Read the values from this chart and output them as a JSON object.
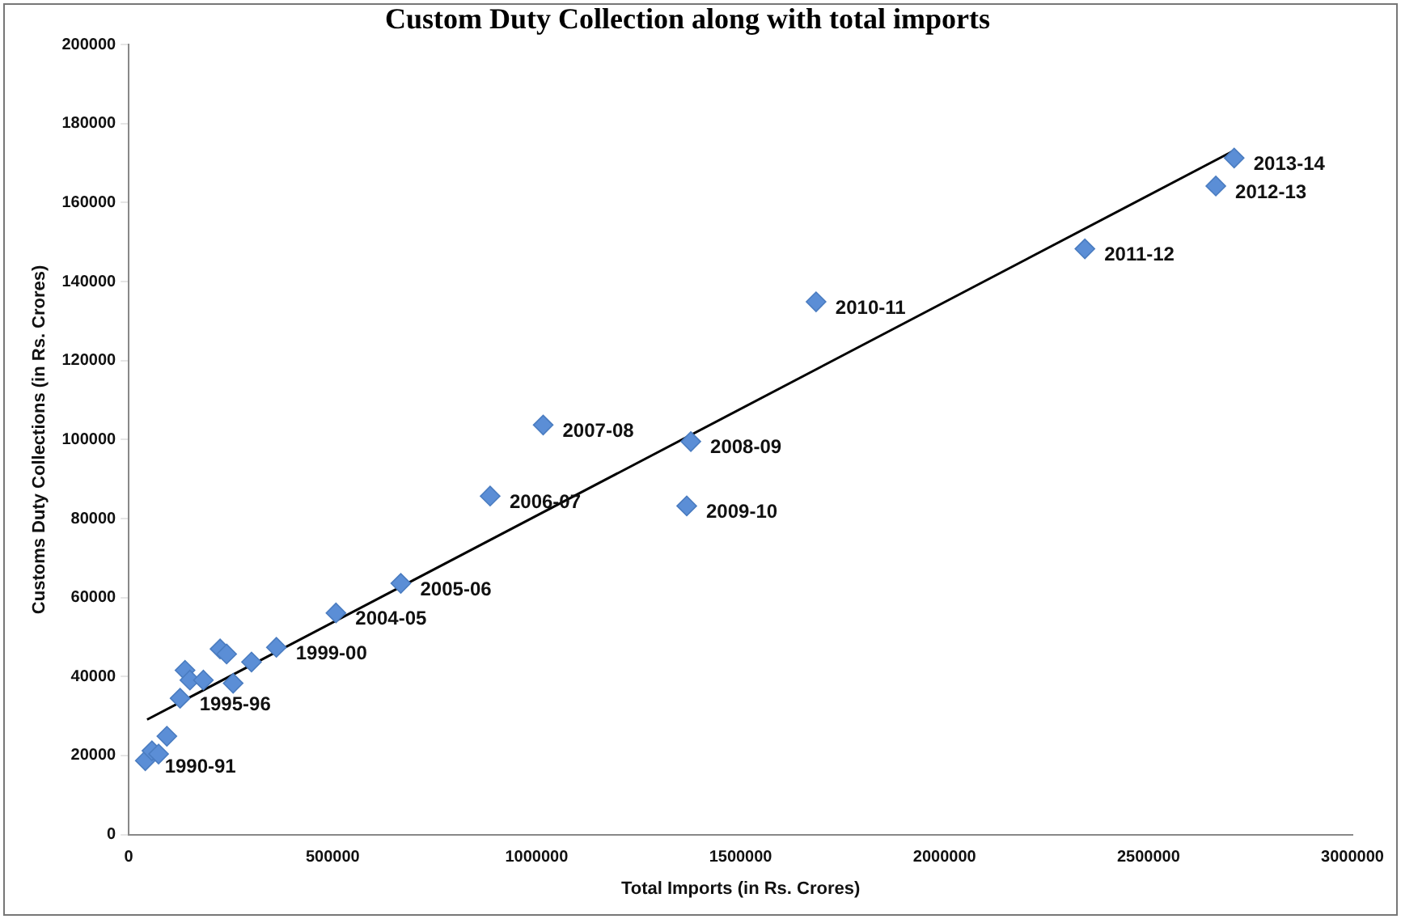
{
  "chart_data": {
    "type": "scatter",
    "title": "Custom Duty Collection along with total imports",
    "xlabel": "Total Imports (in Rs. Crores)",
    "ylabel": "Customs Duty Collections (in Rs. Crores)",
    "xlim": [
      0,
      3000000
    ],
    "xticks": [
      0,
      500000,
      1000000,
      1500000,
      2000000,
      2500000,
      3000000
    ],
    "ylim": [
      0,
      200000
    ],
    "yticks": [
      0,
      20000,
      40000,
      60000,
      80000,
      100000,
      120000,
      140000,
      160000,
      180000,
      200000
    ],
    "grid": false,
    "legend": false,
    "marker": "diamond",
    "series": [
      {
        "type": "scatter",
        "color": "#5b8ed6",
        "x": [
          40650,
          56900,
          73200,
          93500,
          126000,
          138000,
          150000,
          183000,
          224000,
          240000,
          256000,
          301000,
          362000,
          508000,
          667000,
          886000,
          1016000,
          1378000,
          1368000,
          1685000,
          2344000,
          2665000,
          2710000
        ],
        "values": [
          18700,
          21200,
          20400,
          24900,
          34500,
          41600,
          39100,
          39100,
          47000,
          45700,
          38300,
          43700,
          47400,
          56100,
          63600,
          85700,
          103700,
          99500,
          83200,
          134900,
          148300,
          164200,
          171300
        ]
      },
      {
        "type": "line",
        "color": "#000000",
        "marker": "none",
        "line_style": "solid",
        "x": [
          45000,
          2710000
        ],
        "values": [
          29100,
          173200
        ]
      }
    ],
    "annotations": [
      {
        "text": "1990-91",
        "x": 40650,
        "y": 18700
      },
      {
        "text": "1995-96",
        "x": 126000,
        "y": 34500
      },
      {
        "text": "1999-00",
        "x": 362000,
        "y": 47400
      },
      {
        "text": "2004-05",
        "x": 508000,
        "y": 56100
      },
      {
        "text": "2005-06",
        "x": 667000,
        "y": 63600
      },
      {
        "text": "2006-07",
        "x": 886000,
        "y": 85700
      },
      {
        "text": "2007-08",
        "x": 1016000,
        "y": 103700
      },
      {
        "text": "2008-09",
        "x": 1378000,
        "y": 99500
      },
      {
        "text": "2009-10",
        "x": 1368000,
        "y": 83200
      },
      {
        "text": "2010-11",
        "x": 1685000,
        "y": 134900
      },
      {
        "text": "2011-12",
        "x": 2344000,
        "y": 148300
      },
      {
        "text": "2012-13",
        "x": 2665000,
        "y": 164200
      },
      {
        "text": "2013-14",
        "x": 2710000,
        "y": 171300
      }
    ]
  }
}
